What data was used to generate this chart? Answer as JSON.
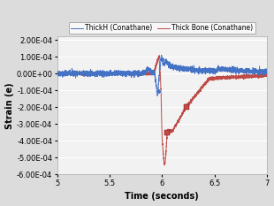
{
  "xlabel": "Time (seconds)",
  "ylabel": "Strain (e)",
  "xlim": [
    5,
    7
  ],
  "ylim": [
    -0.0006,
    0.00022
  ],
  "yticks": [
    -0.0006,
    -0.0005,
    -0.0004,
    -0.0003,
    -0.0002,
    -0.0001,
    0.0,
    0.0001,
    0.0002
  ],
  "xticks": [
    5,
    5.5,
    6,
    6.5,
    7
  ],
  "legend": [
    "ThickH (Conathane)",
    "Thick Bone (Conathane)"
  ],
  "blue_color": "#4472C4",
  "red_color": "#BE4B48",
  "plot_bg": "#F2F2F2",
  "fig_bg": "#DCDCDC",
  "grid_color": "#FFFFFF",
  "noise_amplitude_blue": 8e-06,
  "noise_amplitude_red": 5e-06,
  "seed_blue": 42,
  "seed_red": 7
}
